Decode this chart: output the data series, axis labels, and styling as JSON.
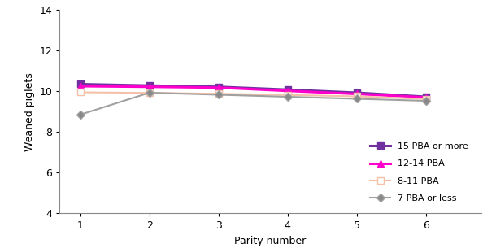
{
  "x": [
    1,
    2,
    3,
    4,
    5,
    6
  ],
  "series": [
    {
      "label": "15 PBA or more",
      "values": [
        10.35,
        10.28,
        10.22,
        10.08,
        9.93,
        9.73
      ],
      "color": "#7030a0",
      "marker": "s",
      "markerface": "#7030a0",
      "linewidth": 2.2
    },
    {
      "label": "12-14 PBA",
      "values": [
        10.25,
        10.22,
        10.18,
        10.02,
        9.87,
        9.7
      ],
      "color": "#ff00cc",
      "marker": "^",
      "markerface": "#ff00cc",
      "linewidth": 2.2
    },
    {
      "label": "8-11 PBA",
      "values": [
        9.95,
        9.92,
        9.88,
        9.82,
        9.75,
        9.62
      ],
      "color": "#f4c0a8",
      "marker": "s",
      "markerface": "#ffffff",
      "linewidth": 1.5
    },
    {
      "label": "7 PBA or less",
      "values": [
        8.85,
        9.93,
        9.83,
        9.73,
        9.63,
        9.53
      ],
      "color": "#a0a0a0",
      "marker": "D",
      "markerface": "#888888",
      "linewidth": 1.5
    }
  ],
  "xlabel": "Parity number",
  "ylabel": "Weaned piglets",
  "ylim": [
    4,
    14
  ],
  "yticks": [
    4,
    6,
    8,
    10,
    12,
    14
  ],
  "xlim": [
    0.7,
    6.8
  ],
  "xticks": [
    1,
    2,
    3,
    4,
    5,
    6
  ],
  "background_color": "#ffffff"
}
